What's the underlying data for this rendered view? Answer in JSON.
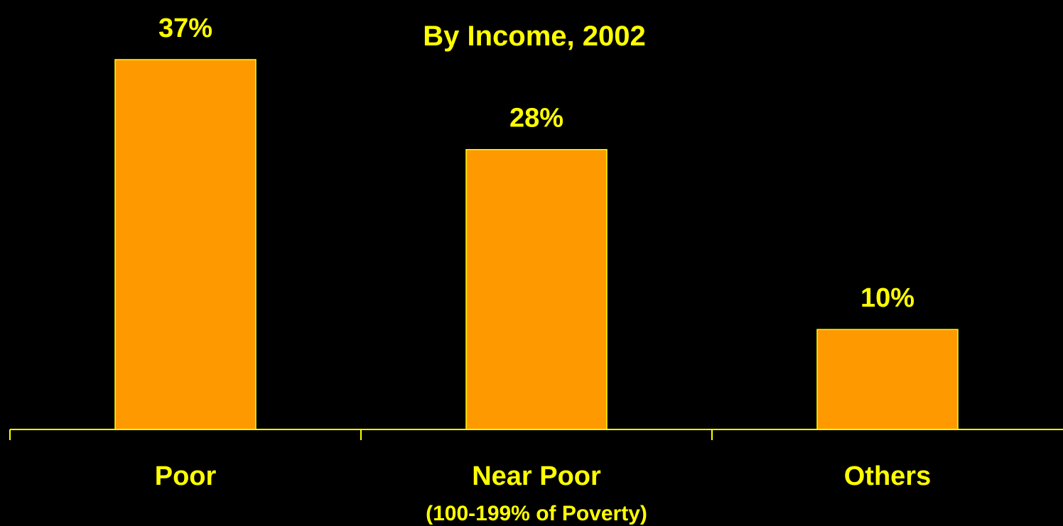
{
  "colors": {
    "background": "#000000",
    "bar_fill": "#FF9900",
    "bar_stroke": "#FFFF00",
    "text": "#FFFF00",
    "axis": "#FFFF00"
  },
  "chart_data": {
    "type": "bar",
    "title": "By Income, 2002",
    "categories": [
      "Poor",
      "Near Poor",
      "Others"
    ],
    "category_sublabels": [
      "",
      "(100-199% of Poverty)",
      ""
    ],
    "values": [
      37,
      28,
      10
    ],
    "data_labels": [
      "37%",
      "28%",
      "10%"
    ],
    "xlabel": "",
    "ylabel": "",
    "ylim": [
      0,
      37
    ],
    "grid": false,
    "legend": "none"
  }
}
